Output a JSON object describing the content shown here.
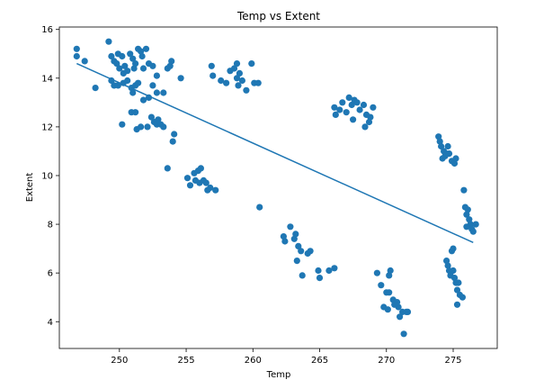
{
  "chart_data": {
    "type": "scatter",
    "title": "Temp vs Extent",
    "xlabel": "Temp",
    "ylabel": "Extent",
    "xlim": [
      245.5,
      278.3
    ],
    "ylim": [
      2.9,
      16.1
    ],
    "xticks": [
      250,
      255,
      260,
      265,
      270,
      275
    ],
    "yticks": [
      4,
      6,
      8,
      10,
      12,
      14,
      16
    ],
    "grid": false,
    "legend": "none",
    "colors": {
      "points": "#1f77b4",
      "line": "#1f77b4"
    },
    "points": [
      [
        246.8,
        15.2
      ],
      [
        246.8,
        14.9
      ],
      [
        247.4,
        14.7
      ],
      [
        248.2,
        13.6
      ],
      [
        249.2,
        15.5
      ],
      [
        249.4,
        14.9
      ],
      [
        249.6,
        14.7
      ],
      [
        249.8,
        14.6
      ],
      [
        250.0,
        14.4
      ],
      [
        250.2,
        14.9
      ],
      [
        250.4,
        14.5
      ],
      [
        250.6,
        14.3
      ],
      [
        250.8,
        15.0
      ],
      [
        251.0,
        14.8
      ],
      [
        251.2,
        14.6
      ],
      [
        251.4,
        15.2
      ],
      [
        251.6,
        15.1
      ],
      [
        251.8,
        14.4
      ],
      [
        252.0,
        15.2
      ],
      [
        252.2,
        14.6
      ],
      [
        252.5,
        14.5
      ],
      [
        252.8,
        14.1
      ],
      [
        250.3,
        14.2
      ],
      [
        251.1,
        14.4
      ],
      [
        251.7,
        14.9
      ],
      [
        249.9,
        15.0
      ],
      [
        249.4,
        13.9
      ],
      [
        249.6,
        13.7
      ],
      [
        249.9,
        13.7
      ],
      [
        250.3,
        13.8
      ],
      [
        250.6,
        13.9
      ],
      [
        250.9,
        13.6
      ],
      [
        251.0,
        13.4
      ],
      [
        251.2,
        13.7
      ],
      [
        251.4,
        13.8
      ],
      [
        251.8,
        13.1
      ],
      [
        252.2,
        13.2
      ],
      [
        252.5,
        13.7
      ],
      [
        252.8,
        13.4
      ],
      [
        253.3,
        13.4
      ],
      [
        253.6,
        14.4
      ],
      [
        253.8,
        14.5
      ],
      [
        253.9,
        14.7
      ],
      [
        254.6,
        14.0
      ],
      [
        250.2,
        12.1
      ],
      [
        250.9,
        12.6
      ],
      [
        251.2,
        12.6
      ],
      [
        251.3,
        11.9
      ],
      [
        251.6,
        12.0
      ],
      [
        252.1,
        12.0
      ],
      [
        252.4,
        12.4
      ],
      [
        252.6,
        12.2
      ],
      [
        252.8,
        12.1
      ],
      [
        253.1,
        12.1
      ],
      [
        253.3,
        12.0
      ],
      [
        252.9,
        12.3
      ],
      [
        254.1,
        11.7
      ],
      [
        254.0,
        11.4
      ],
      [
        253.6,
        10.3
      ],
      [
        255.1,
        9.9
      ],
      [
        255.3,
        9.6
      ],
      [
        255.6,
        10.1
      ],
      [
        255.9,
        10.2
      ],
      [
        256.1,
        10.3
      ],
      [
        255.7,
        9.8
      ],
      [
        256.0,
        9.7
      ],
      [
        256.3,
        9.8
      ],
      [
        256.6,
        9.4
      ],
      [
        256.8,
        9.5
      ],
      [
        257.2,
        9.4
      ],
      [
        256.5,
        9.7
      ],
      [
        256.9,
        14.5
      ],
      [
        257.0,
        14.1
      ],
      [
        257.6,
        13.9
      ],
      [
        258.0,
        13.8
      ],
      [
        258.3,
        14.3
      ],
      [
        258.6,
        14.4
      ],
      [
        258.8,
        14.6
      ],
      [
        258.9,
        13.7
      ],
      [
        259.0,
        14.2
      ],
      [
        259.2,
        13.9
      ],
      [
        259.5,
        13.5
      ],
      [
        259.9,
        14.6
      ],
      [
        260.1,
        13.8
      ],
      [
        260.4,
        13.8
      ],
      [
        258.8,
        14.0
      ],
      [
        260.5,
        8.7
      ],
      [
        262.3,
        7.5
      ],
      [
        262.4,
        7.3
      ],
      [
        262.8,
        7.9
      ],
      [
        263.1,
        7.4
      ],
      [
        263.2,
        7.6
      ],
      [
        263.4,
        7.1
      ],
      [
        263.6,
        6.9
      ],
      [
        264.1,
        6.8
      ],
      [
        264.3,
        6.9
      ],
      [
        263.3,
        6.5
      ],
      [
        263.7,
        5.9
      ],
      [
        264.9,
        6.1
      ],
      [
        265.0,
        5.8
      ],
      [
        265.7,
        6.1
      ],
      [
        266.1,
        6.2
      ],
      [
        266.1,
        12.8
      ],
      [
        266.2,
        12.5
      ],
      [
        266.5,
        12.7
      ],
      [
        266.7,
        13.0
      ],
      [
        267.0,
        12.6
      ],
      [
        267.2,
        13.2
      ],
      [
        267.4,
        12.9
      ],
      [
        267.6,
        13.1
      ],
      [
        267.8,
        13.0
      ],
      [
        268.0,
        12.7
      ],
      [
        268.3,
        12.9
      ],
      [
        268.5,
        12.5
      ],
      [
        268.7,
        12.2
      ],
      [
        268.8,
        12.4
      ],
      [
        269.0,
        12.8
      ],
      [
        268.4,
        12.0
      ],
      [
        267.5,
        12.3
      ],
      [
        269.3,
        6.0
      ],
      [
        269.6,
        5.5
      ],
      [
        270.0,
        5.2
      ],
      [
        270.2,
        5.9
      ],
      [
        270.3,
        6.1
      ],
      [
        270.2,
        5.2
      ],
      [
        270.5,
        4.9
      ],
      [
        270.8,
        4.8
      ],
      [
        270.9,
        4.6
      ],
      [
        271.0,
        4.2
      ],
      [
        271.2,
        4.4
      ],
      [
        271.5,
        4.4
      ],
      [
        271.6,
        4.4
      ],
      [
        270.6,
        4.7
      ],
      [
        271.3,
        3.5
      ],
      [
        269.8,
        4.6
      ],
      [
        270.1,
        4.5
      ],
      [
        273.9,
        11.6
      ],
      [
        274.0,
        11.4
      ],
      [
        274.1,
        11.2
      ],
      [
        274.3,
        11.0
      ],
      [
        274.4,
        10.8
      ],
      [
        274.6,
        11.2
      ],
      [
        274.7,
        10.9
      ],
      [
        274.9,
        10.6
      ],
      [
        275.1,
        10.5
      ],
      [
        275.2,
        10.7
      ],
      [
        274.2,
        10.7
      ],
      [
        274.5,
        10.9
      ],
      [
        275.8,
        9.4
      ],
      [
        275.9,
        8.7
      ],
      [
        276.0,
        8.4
      ],
      [
        276.1,
        8.6
      ],
      [
        276.2,
        8.2
      ],
      [
        276.3,
        8.0
      ],
      [
        276.4,
        7.8
      ],
      [
        276.5,
        7.7
      ],
      [
        276.7,
        8.0
      ],
      [
        276.0,
        7.9
      ],
      [
        274.5,
        6.5
      ],
      [
        274.6,
        6.3
      ],
      [
        274.7,
        6.1
      ],
      [
        274.9,
        6.9
      ],
      [
        275.0,
        6.1
      ],
      [
        275.1,
        5.8
      ],
      [
        275.2,
        5.6
      ],
      [
        275.3,
        5.3
      ],
      [
        275.5,
        5.1
      ],
      [
        275.7,
        5.0
      ],
      [
        275.3,
        4.7
      ],
      [
        275.0,
        7.0
      ],
      [
        274.8,
        5.9
      ],
      [
        275.4,
        5.6
      ]
    ],
    "regression": {
      "x": [
        246.8,
        276.5
      ],
      "y": [
        14.6,
        7.25
      ]
    }
  }
}
